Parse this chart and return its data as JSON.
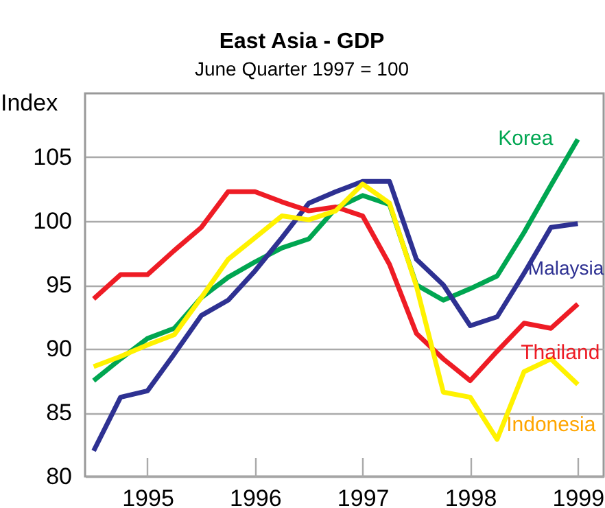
{
  "chart_data": {
    "type": "line",
    "title": "East Asia - GDP",
    "subtitle": "June Quarter 1997 = 100",
    "ylabel": "Index",
    "x": [
      1994.5,
      1994.75,
      1995,
      1995.25,
      1995.5,
      1995.75,
      1996,
      1996.25,
      1996.5,
      1996.75,
      1997,
      1997.25,
      1997.5,
      1997.75,
      1998,
      1998.25,
      1998.5,
      1998.75,
      1999
    ],
    "series": [
      {
        "name": "Korea",
        "color": "#00a651",
        "values": [
          87.5,
          89.2,
          90.8,
          91.6,
          94.0,
          95.6,
          96.8,
          97.9,
          98.6,
          101.0,
          102.0,
          101.3,
          95.0,
          93.8,
          94.7,
          95.7,
          99.1,
          102.8,
          106.4
        ]
      },
      {
        "name": "Malaysia",
        "color": "#2e3192",
        "values": [
          82.0,
          86.2,
          86.7,
          89.6,
          92.6,
          93.8,
          96.1,
          98.7,
          101.4,
          102.3,
          103.1,
          103.1,
          97.0,
          95.0,
          91.8,
          92.5,
          95.9,
          99.5,
          99.8
        ]
      },
      {
        "name": "Thailand",
        "color": "#ee1c25",
        "values": [
          93.9,
          95.8,
          95.8,
          97.7,
          99.5,
          102.3,
          102.3,
          101.5,
          100.8,
          101.1,
          100.4,
          96.6,
          91.2,
          89.2,
          87.5,
          89.8,
          92.0,
          91.6,
          93.5
        ]
      },
      {
        "name": "Indonesia",
        "color": "#fff200",
        "values": [
          88.6,
          89.4,
          90.3,
          91.1,
          94.0,
          97.0,
          98.7,
          100.4,
          100.1,
          100.8,
          102.9,
          101.4,
          94.9,
          86.6,
          86.2,
          82.9,
          88.2,
          89.2,
          87.2
        ]
      }
    ],
    "xlim": [
      1994.42,
      1999.24
    ],
    "xticks": [
      1995,
      1996,
      1997,
      1998,
      1999
    ],
    "ylim": [
      80,
      110
    ],
    "yticks": [
      80,
      85,
      90,
      95,
      100,
      105
    ],
    "grid": "y",
    "marker": "none",
    "line_style": "solid"
  }
}
